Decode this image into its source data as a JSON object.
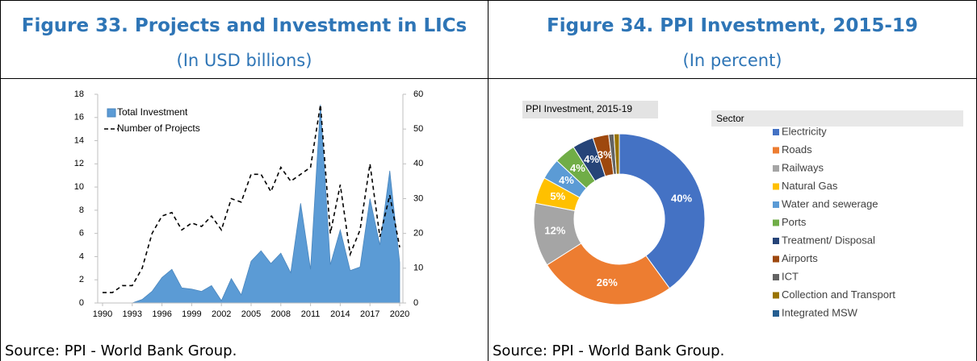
{
  "figures": [
    {
      "title": "Figure 33. Projects and Investment in LICs",
      "subtitle": "(In USD billions)",
      "source": "Source: PPI - World Bank Group."
    },
    {
      "title": "Figure 34. PPI Investment, 2015-19",
      "subtitle": "(In percent)",
      "source": "Source: PPI - World Bank Group."
    }
  ],
  "chart_data": [
    {
      "type": "combo",
      "x": [
        1990,
        1991,
        1992,
        1993,
        1994,
        1995,
        1996,
        1997,
        1998,
        1999,
        2000,
        2001,
        2002,
        2003,
        2004,
        2005,
        2006,
        2007,
        2008,
        2009,
        2010,
        2011,
        2012,
        2013,
        2014,
        2015,
        2016,
        2017,
        2018,
        2019,
        2020
      ],
      "xlim": [
        1990,
        2020
      ],
      "xticks": [
        1990,
        1993,
        1996,
        1999,
        2002,
        2005,
        2008,
        2011,
        2014,
        2017,
        2020
      ],
      "ylim": [
        0,
        18
      ],
      "yticks": [
        0,
        2,
        4,
        6,
        8,
        10,
        12,
        14,
        16,
        18
      ],
      "y2lim": [
        0,
        60
      ],
      "y2ticks": [
        0,
        10,
        20,
        30,
        40,
        50,
        60
      ],
      "legend": "upper left",
      "series": [
        {
          "name": "Total Investment",
          "type": "area",
          "color": "#5b9bd5",
          "values": [
            0,
            0,
            0,
            0,
            0.3,
            1.0,
            2.2,
            2.9,
            1.3,
            1.2,
            1.0,
            1.5,
            0.2,
            2.1,
            0.7,
            3.6,
            4.5,
            3.4,
            4.3,
            2.6,
            8.6,
            2.9,
            17.1,
            3.3,
            6.3,
            2.8,
            3.1,
            9.0,
            5.0,
            11.4,
            3.5
          ]
        },
        {
          "name": "Number of Projects",
          "type": "line",
          "axis": "y2",
          "color": "#000000",
          "values": [
            3,
            3,
            5,
            5,
            10,
            20,
            25,
            26,
            21,
            23,
            22,
            25,
            21,
            30,
            29,
            37,
            37,
            32,
            39,
            35,
            37,
            39,
            57,
            20,
            34,
            14,
            21,
            40,
            19,
            31,
            16
          ]
        }
      ]
    },
    {
      "type": "donut",
      "title": "PPI Investment, 2015-19",
      "legend_title": "Sector",
      "categories": [
        "Electricity",
        "Roads",
        "Railways",
        "Natural Gas",
        "Water and sewerage",
        "Ports",
        "Treatment/ Disposal",
        "Airports",
        "ICT",
        "Collection and Transport",
        "Integrated MSW"
      ],
      "values": [
        40,
        26,
        12,
        5,
        4,
        4,
        4,
        3,
        1,
        1,
        0
      ],
      "value_labels": [
        "40%",
        "26%",
        "12%",
        "5%",
        "4%",
        "4%",
        "4%",
        "3%",
        null,
        null,
        null
      ],
      "colors": [
        "#4472c4",
        "#ed7d31",
        "#a5a5a5",
        "#ffc000",
        "#5b9bd5",
        "#70ad47",
        "#264478",
        "#9e480e",
        "#636363",
        "#997300",
        "#255e91"
      ]
    }
  ]
}
